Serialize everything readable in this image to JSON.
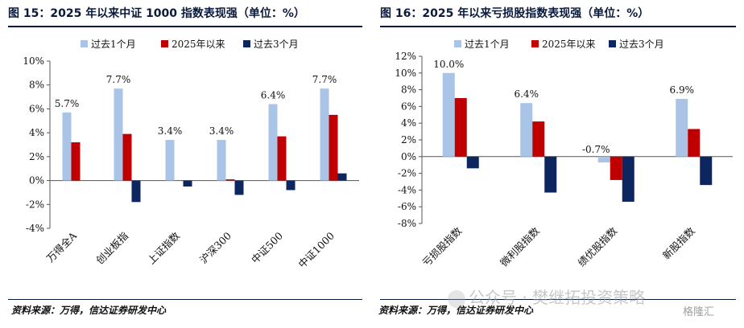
{
  "charts": [
    {
      "title": "图 15：2025 年以来中证 1000 指数表现强（单位：%）",
      "source": "资料来源：万得，信达证券研发中心"
    },
    {
      "title": "图 16：2025 年以来亏损股指数表现强（单位：%）",
      "source": "资料来源：万得，信达证券研发中心"
    }
  ],
  "watermark": {
    "text": "公众号 · 樊继拓投资策略",
    "logo": "格隆汇"
  },
  "chart_data": [
    {
      "type": "bar",
      "categories": [
        "万得全A",
        "创业板指",
        "上证指数",
        "沪深300",
        "中证500",
        "中证1000"
      ],
      "series": [
        {
          "name": "过去1个月",
          "color": "#a9c4e6",
          "values": [
            5.7,
            7.7,
            3.4,
            3.4,
            6.4,
            7.7
          ]
        },
        {
          "name": "2025年以来",
          "color": "#c00000",
          "values": [
            3.2,
            3.9,
            0.0,
            0.1,
            3.7,
            5.5
          ]
        },
        {
          "name": "过去3个月",
          "color": "#0d2660",
          "values": [
            0.0,
            -1.8,
            -0.5,
            -1.2,
            -0.8,
            0.6
          ]
        }
      ],
      "data_labels": {
        "series": 0,
        "labels": [
          "5.7%",
          "7.7%",
          "3.4%",
          "3.4%",
          "6.4%",
          "7.7%"
        ]
      },
      "ylim": [
        -4,
        10
      ],
      "yticks": [
        -4,
        -2,
        0,
        2,
        4,
        6,
        8,
        10
      ],
      "ytick_labels": [
        "-4%",
        "-2%",
        "0%",
        "2%",
        "4%",
        "6%",
        "8%",
        "10%"
      ],
      "legend": "top",
      "grid": false
    },
    {
      "type": "bar",
      "categories": [
        "亏损股指数",
        "微利股指数",
        "绩优股指数",
        "新股指数"
      ],
      "series": [
        {
          "name": "过去1个月",
          "color": "#a9c4e6",
          "values": [
            10.0,
            6.4,
            -0.7,
            6.9
          ]
        },
        {
          "name": "2025年以来",
          "color": "#c00000",
          "values": [
            7.0,
            4.2,
            -2.8,
            3.3
          ]
        },
        {
          "name": "过去3个月",
          "color": "#0d2660",
          "values": [
            -1.4,
            -4.3,
            -5.4,
            -3.4
          ]
        }
      ],
      "data_labels": {
        "series": 0,
        "labels": [
          "10.0%",
          "6.4%",
          "-0.7%",
          "6.9%"
        ]
      },
      "ylim": [
        -8,
        12
      ],
      "yticks": [
        -8,
        -6,
        -4,
        -2,
        0,
        2,
        4,
        6,
        8,
        10,
        12
      ],
      "ytick_labels": [
        "-8%",
        "-6%",
        "-4%",
        "-2%",
        "0%",
        "2%",
        "4%",
        "6%",
        "8%",
        "10%",
        "12%"
      ],
      "legend": "top",
      "grid": false
    }
  ]
}
